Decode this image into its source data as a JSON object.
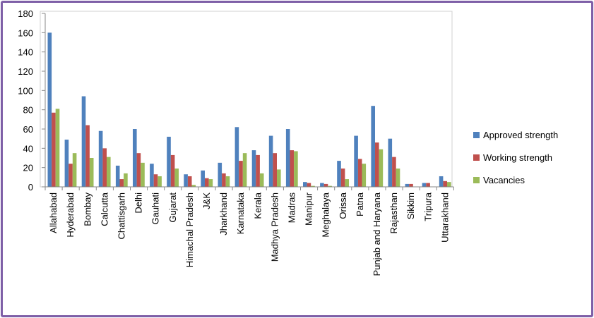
{
  "chart_data": {
    "type": "bar",
    "categories": [
      "Allahabad",
      "Hyderabad",
      "Bombay",
      "Calcutta",
      "Chattisgarh",
      "Delhi",
      "Gauhati",
      "Gujarat",
      "Himachal Pradesh",
      "J&K",
      "Jharkhand",
      "Karnataka",
      "Kerala",
      "Madhya Pradesh",
      "Madras",
      "Manipur",
      "Meghalaya",
      "Orissa",
      "Patna",
      "Punjab and Haryana",
      "Rajasthan",
      "Sikkim",
      "Tripura",
      "Uttarakhand"
    ],
    "series": [
      {
        "name": "Approved strength",
        "color": "#4f81bd",
        "values": [
          160,
          49,
          94,
          58,
          22,
          60,
          24,
          52,
          13,
          17,
          25,
          62,
          38,
          53,
          60,
          5,
          4,
          27,
          53,
          84,
          50,
          3,
          4,
          11
        ]
      },
      {
        "name": "Working strength",
        "color": "#c0504d",
        "values": [
          77,
          24,
          64,
          40,
          8,
          35,
          13,
          33,
          11,
          9,
          14,
          27,
          33,
          35,
          38,
          4,
          3,
          19,
          29,
          46,
          31,
          3,
          4,
          6
        ]
      },
      {
        "name": "Vacancies",
        "color": "#9bbb59",
        "values": [
          81,
          35,
          30,
          31,
          14,
          25,
          11,
          19,
          2,
          8,
          11,
          35,
          14,
          18,
          37,
          1,
          1,
          8,
          24,
          39,
          19,
          0,
          0,
          5
        ]
      }
    ],
    "yticks": [
      0,
      20,
      40,
      60,
      80,
      100,
      120,
      140,
      160,
      180
    ],
    "ylim": [
      0,
      180
    ],
    "title": "",
    "xlabel": "",
    "ylabel": "",
    "grid": false,
    "legend": "right"
  }
}
